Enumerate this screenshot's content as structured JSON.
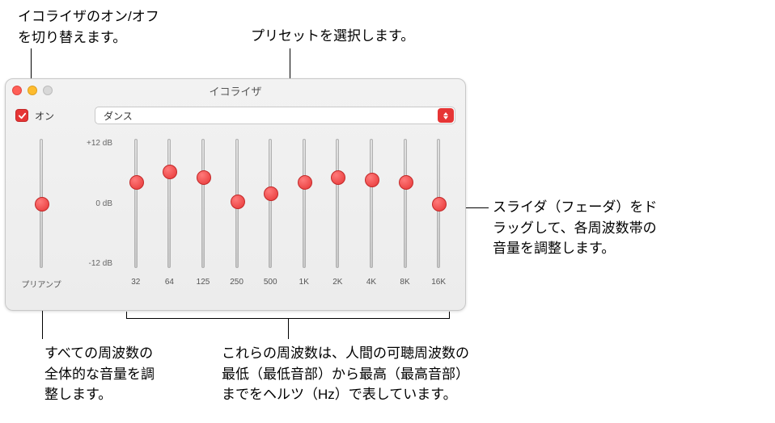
{
  "callouts": {
    "toggle": "イコライザのオン/オフ\nを切り替えます。",
    "preset": "プリセットを選択します。",
    "slider": "スライダ（フェーダ）をド\nラッグして、各周波数帯の\n音量を調整します。",
    "preamp": "すべての周波数の\n全体的な音量を調\n整します。",
    "freq": "これらの周波数は、人間の可聴周波数の\n最低（最低音部）から最高（最高音部）\nまでをヘルツ（Hz）で表しています。"
  },
  "window": {
    "title": "イコライザ",
    "on_label": "オン",
    "on_checked": true,
    "preset_value": "ダンス",
    "db_labels": {
      "max": "+12 dB",
      "mid": "0 dB",
      "min": "-12 dB"
    },
    "preamp_label": "プリアンプ",
    "preamp_value": 0,
    "bands": [
      {
        "label": "32",
        "value": 4.0
      },
      {
        "label": "64",
        "value": 6.0
      },
      {
        "label": "125",
        "value": 5.0
      },
      {
        "label": "250",
        "value": 0.5
      },
      {
        "label": "500",
        "value": 2.0
      },
      {
        "label": "1K",
        "value": 4.0
      },
      {
        "label": "2K",
        "value": 5.0
      },
      {
        "label": "4K",
        "value": 4.5
      },
      {
        "label": "8K",
        "value": 4.0
      },
      {
        "label": "16K",
        "value": 0.0
      }
    ]
  },
  "colors": {
    "accent": "#e63535",
    "track": "#c8c8c8"
  }
}
